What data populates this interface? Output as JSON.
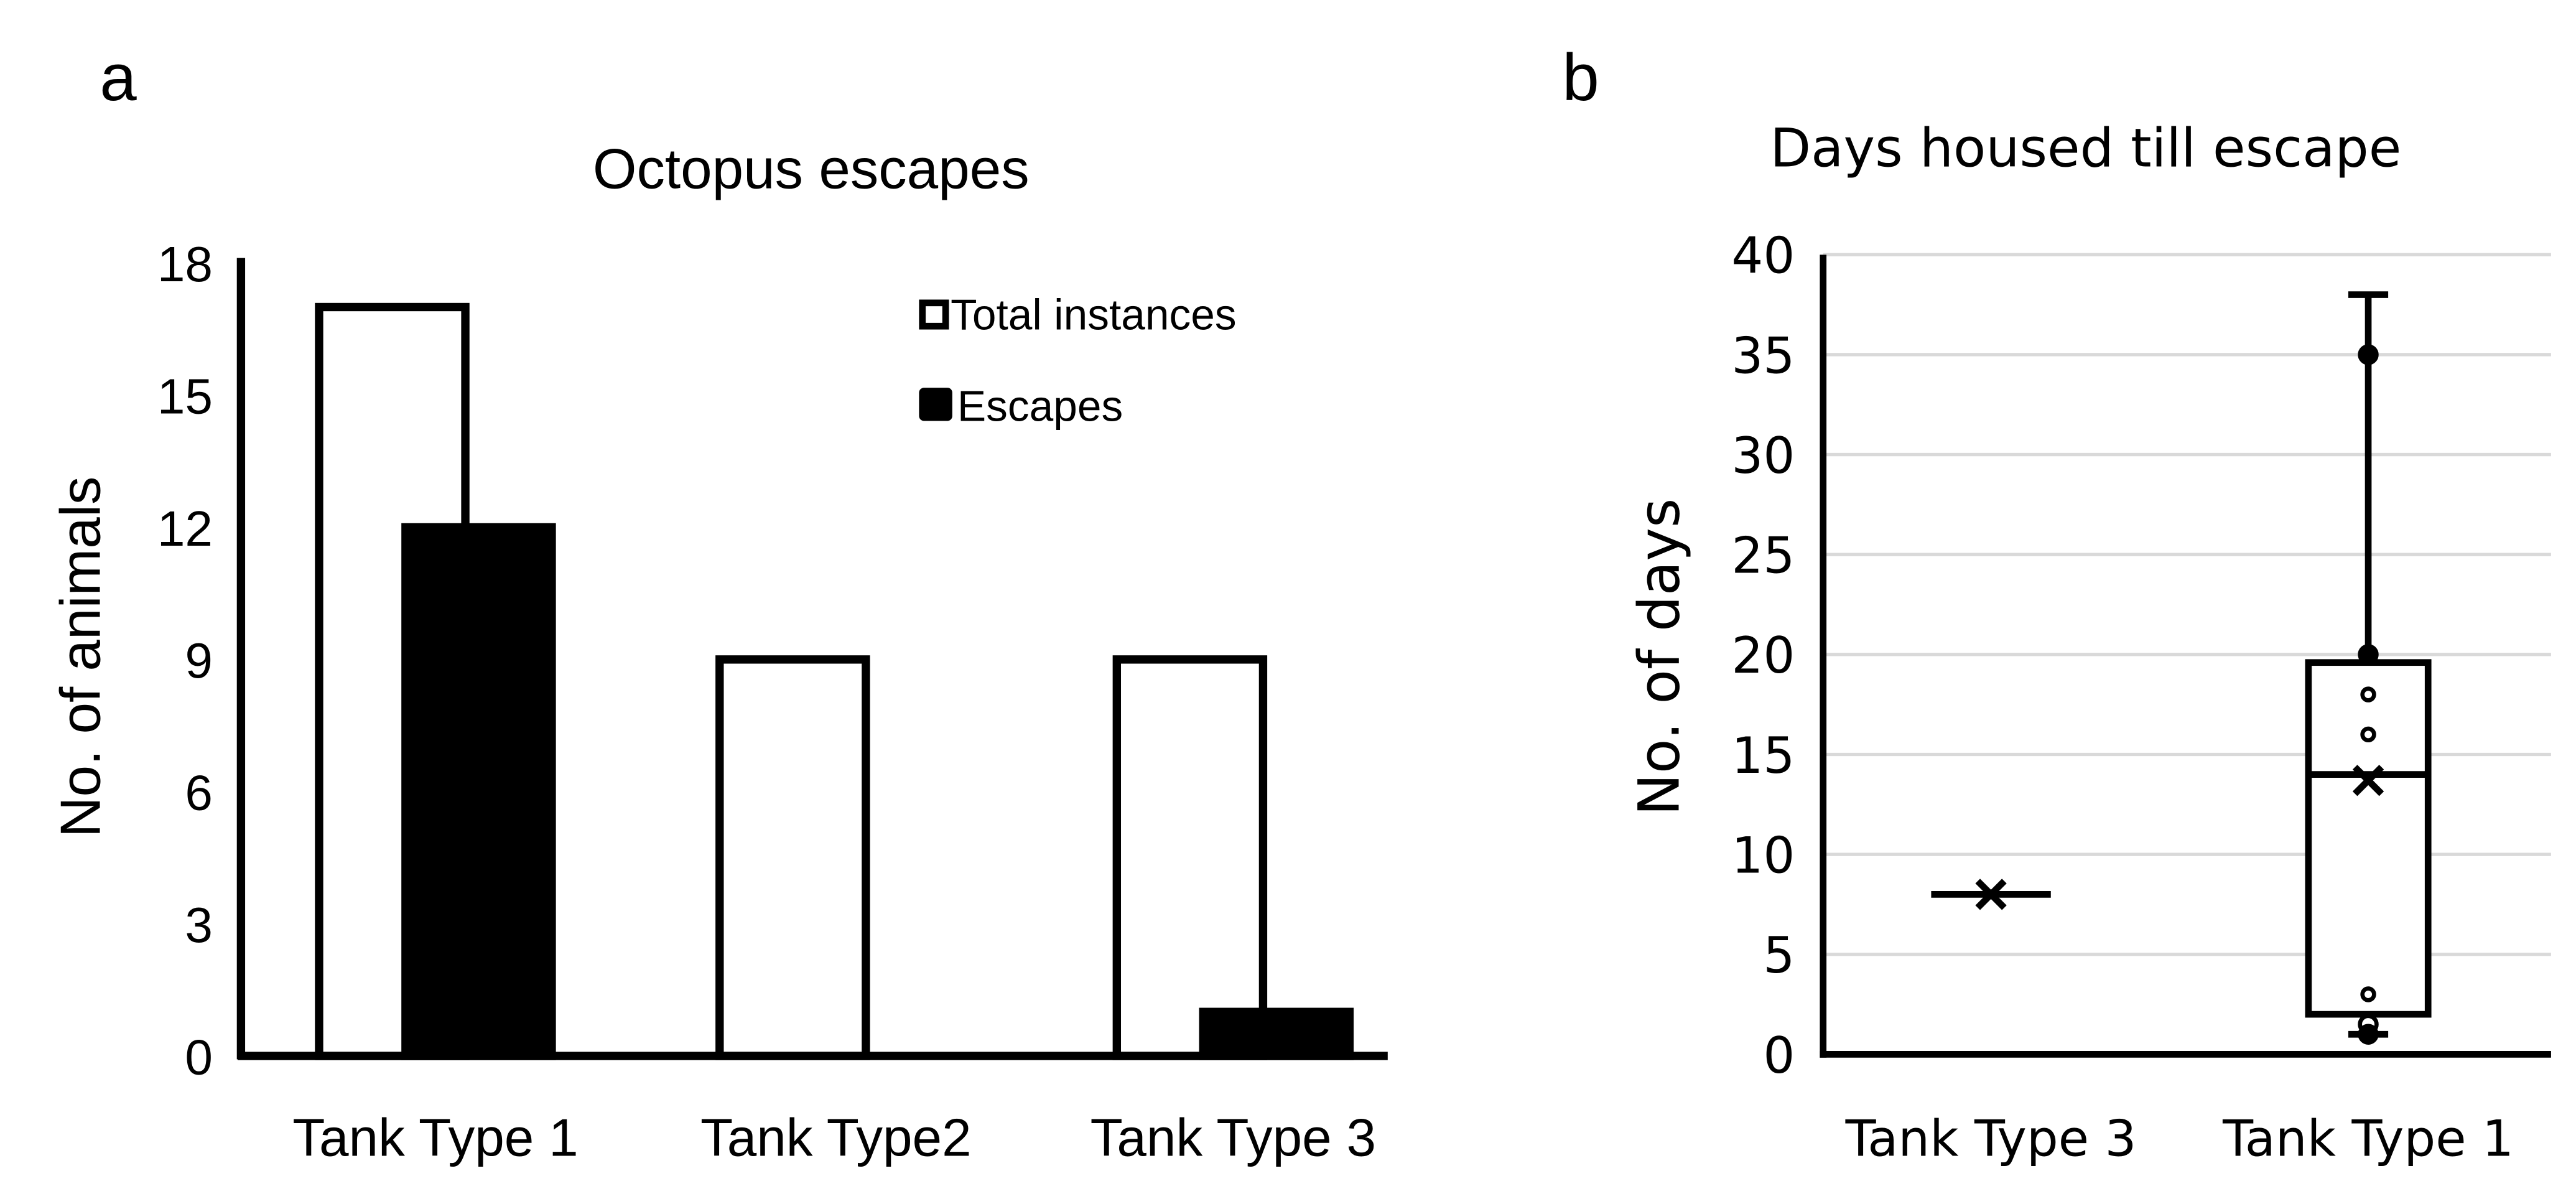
{
  "panel_labels": [
    "a",
    "b"
  ],
  "chart_data": [
    {
      "type": "bar",
      "title": "Octopus escapes",
      "xlabel": "",
      "ylabel": "No. of animals",
      "ylim": [
        0,
        18
      ],
      "yticks": [
        0,
        3,
        6,
        9,
        12,
        15,
        18
      ],
      "categories": [
        "Tank Type 1",
        "Tank Type2",
        "Tank Type 3"
      ],
      "series": [
        {
          "name": "Total instances",
          "fill": "#ffffff",
          "values": [
            17,
            9,
            9
          ]
        },
        {
          "name": "Escapes",
          "fill": "#000000",
          "values": [
            12,
            0,
            1
          ]
        }
      ],
      "legend": "top-right",
      "grid": false
    },
    {
      "type": "box",
      "title": "Days housed till escape",
      "xlabel": "",
      "ylabel": "No. of days",
      "ylim": [
        0,
        40
      ],
      "yticks": [
        0,
        5,
        10,
        15,
        20,
        25,
        30,
        35,
        40
      ],
      "grid": true,
      "categories": [
        "Tank Type 3",
        "Tank Type 1"
      ],
      "boxes": [
        {
          "name": "Tank Type 3",
          "min": 8,
          "q1": 8,
          "median": 8,
          "q3": 8,
          "max": 8,
          "mean": 8,
          "points": []
        },
        {
          "name": "Tank Type 1",
          "min": 1,
          "q1": 2,
          "median": 14,
          "q3": 19.6,
          "max": 38,
          "mean": 13.7,
          "points": [
            35,
            20,
            18,
            16,
            3,
            1.5,
            1
          ]
        }
      ]
    }
  ]
}
